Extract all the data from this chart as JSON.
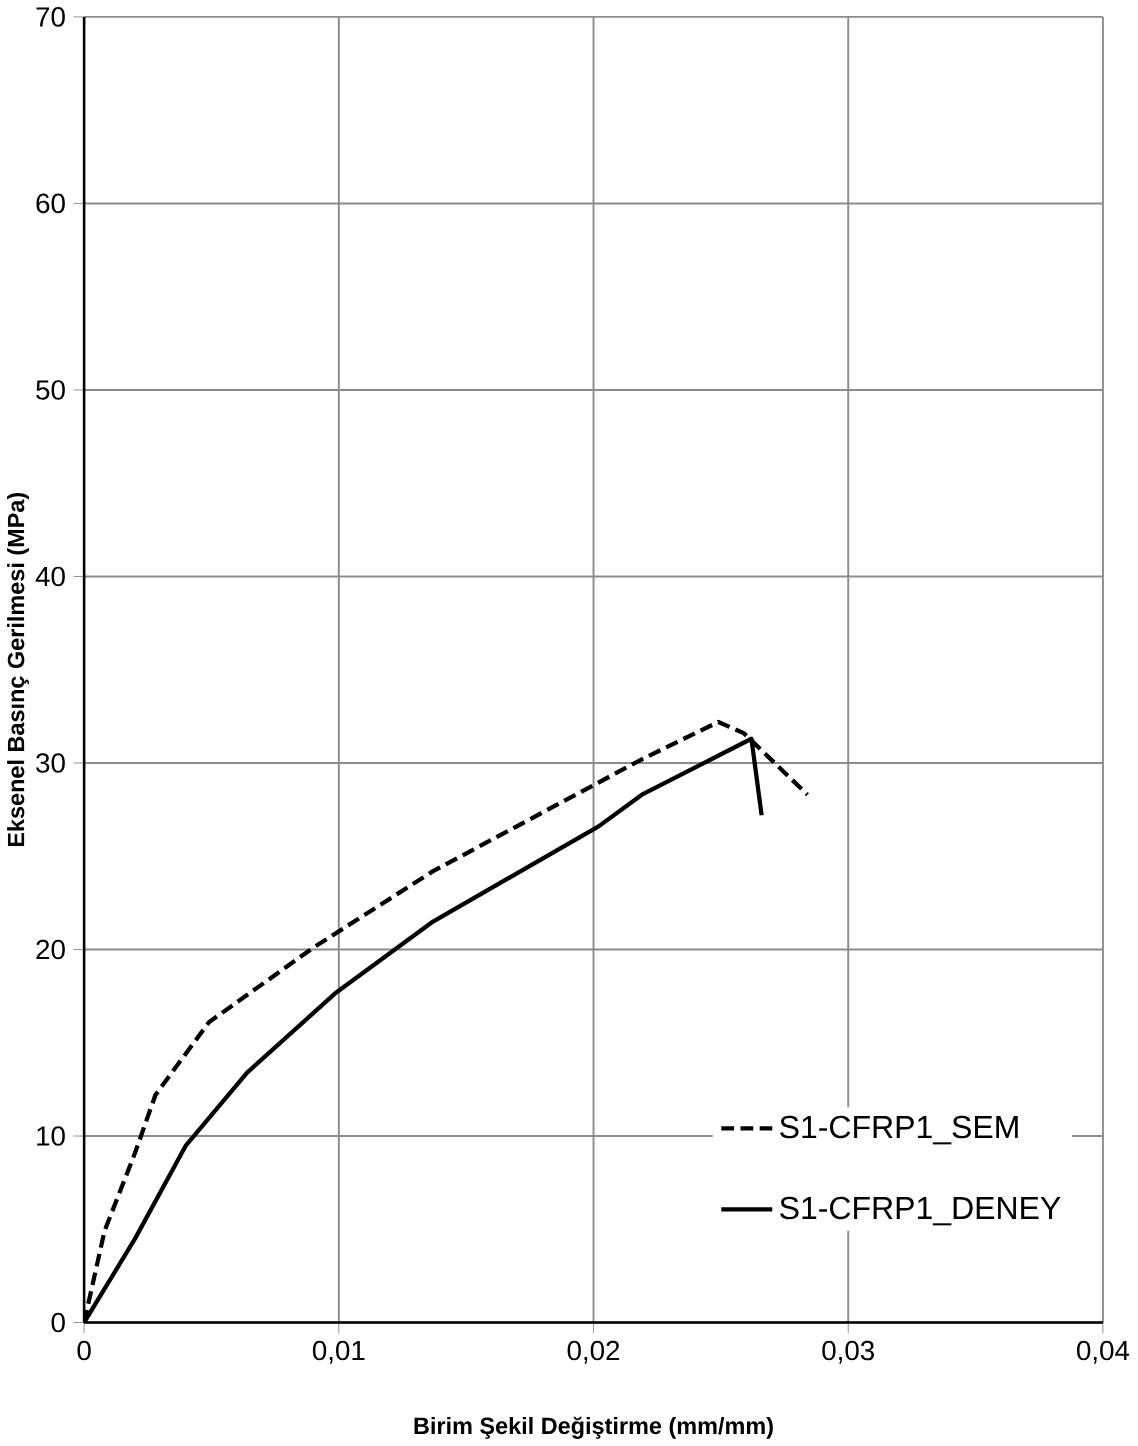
{
  "chart_data": {
    "type": "line",
    "xlabel": "Birim Şekil Değiştirme (mm/mm)",
    "ylabel": "Eksenel Basınç Gerilmesi (MPa)",
    "xlim": [
      0,
      0.04
    ],
    "ylim": [
      0,
      70
    ],
    "xticks": [
      {
        "value": 0,
        "label": "0"
      },
      {
        "value": 0.01,
        "label": "0,01"
      },
      {
        "value": 0.02,
        "label": "0,02"
      },
      {
        "value": 0.03,
        "label": "0,03"
      },
      {
        "value": 0.04,
        "label": "0,04"
      }
    ],
    "yticks": [
      0,
      10,
      20,
      30,
      40,
      50,
      60,
      70
    ],
    "grid": true,
    "legend": "bottom right",
    "marker": "none",
    "series": [
      {
        "name": "S1-CFRP1_SEM",
        "color": "#000000",
        "line_style": "dashed",
        "x": [
          0,
          0.0008,
          0.002,
          0.0028,
          0.0049,
          0.009,
          0.0137,
          0.0219,
          0.0249,
          0.0259,
          0.0284
        ],
        "values": [
          0,
          4.9,
          9.1,
          12.2,
          16.1,
          20.1,
          24.2,
          30.2,
          32.2,
          31.6,
          28.3
        ]
      },
      {
        "name": "S1-CFRP1_DENEY",
        "color": "#000000",
        "line_style": "solid",
        "x": [
          0,
          0.002,
          0.004,
          0.0064,
          0.0099,
          0.0137,
          0.0202,
          0.0219,
          0.0262,
          0.0266
        ],
        "values": [
          0,
          4.5,
          9.5,
          13.4,
          17.7,
          21.5,
          26.6,
          28.3,
          31.3,
          27.2
        ]
      }
    ]
  }
}
